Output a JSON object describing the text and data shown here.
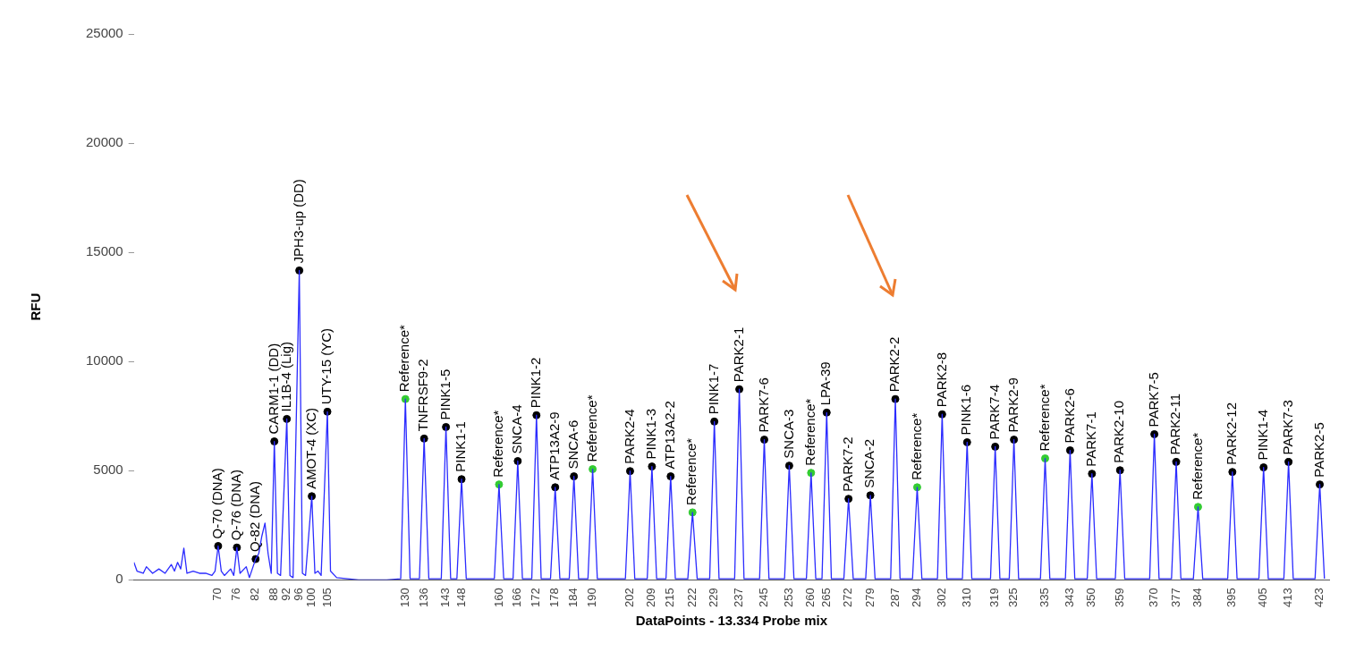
{
  "chart_data": {
    "type": "line",
    "xlabel": "DataPoints - 13.334 Probe mix",
    "ylabel": "RFU",
    "xlim": [
      43,
      426
    ],
    "ylim": [
      0,
      25000
    ],
    "yticks": [
      0,
      5000,
      10000,
      15000,
      20000,
      25000
    ],
    "xticks": [
      70,
      76,
      82,
      88,
      92,
      96,
      100,
      105,
      130,
      136,
      143,
      148,
      160,
      166,
      172,
      178,
      184,
      190,
      202,
      209,
      215,
      222,
      229,
      237,
      245,
      253,
      260,
      265,
      272,
      279,
      287,
      294,
      302,
      310,
      319,
      325,
      335,
      343,
      350,
      359,
      370,
      377,
      384,
      395,
      405,
      413,
      423
    ],
    "grid": false,
    "legend": false,
    "series": [
      {
        "color": "#2b2bff",
        "x": [
          43,
          44,
          46,
          47,
          49,
          51,
          53,
          55,
          56,
          57,
          58,
          59,
          60,
          62,
          64,
          66,
          68,
          69,
          70,
          71,
          72,
          74,
          75,
          76,
          77,
          79,
          80,
          82,
          83,
          84,
          85,
          86,
          87,
          88,
          89,
          90,
          92,
          93,
          94,
          96,
          97,
          98,
          100,
          101,
          102,
          103,
          105,
          106,
          108,
          115,
          124,
          128.5,
          130,
          131.5,
          134.5,
          136,
          137.5,
          141.5,
          143,
          144.5,
          146.5,
          148,
          149.5,
          158.5,
          160,
          161.5,
          164.5,
          166,
          167.5,
          170.5,
          172,
          173.5,
          176.5,
          178,
          179.5,
          182.5,
          184,
          185.5,
          188.5,
          190,
          191.5,
          200.5,
          202,
          203.5,
          207.5,
          209,
          210.5,
          213.5,
          215,
          216.5,
          220.5,
          222,
          223.5,
          227.5,
          229,
          230.5,
          235.5,
          237,
          238.5,
          243.5,
          245,
          246.5,
          251.5,
          253,
          254.5,
          258.5,
          260,
          261.5,
          263.5,
          265,
          266.5,
          270.5,
          272,
          273.5,
          277.5,
          279,
          280.5,
          285.5,
          287,
          288.5,
          292.5,
          294,
          295.5,
          300.5,
          302,
          303.5,
          308.5,
          310,
          311.5,
          317.5,
          319,
          320.5,
          323.5,
          325,
          326.5,
          333.5,
          335,
          336.5,
          341.5,
          343,
          344.5,
          348.5,
          350,
          351.5,
          357.5,
          359,
          360.5,
          368.5,
          370,
          371.5,
          375.5,
          377,
          378.5,
          382.5,
          384,
          385.5,
          393.5,
          395,
          396.5,
          403.5,
          405,
          406.5,
          411.5,
          413,
          414.5,
          421.5,
          423,
          424.5
        ],
        "values": [
          800,
          400,
          300,
          600,
          300,
          500,
          300,
          700,
          400,
          800,
          500,
          1450,
          300,
          400,
          300,
          300,
          200,
          400,
          1550,
          400,
          200,
          500,
          200,
          1480,
          300,
          600,
          100,
          950,
          1200,
          2000,
          2600,
          1200,
          300,
          6340,
          300,
          200,
          7370,
          200,
          100,
          14170,
          300,
          200,
          3830,
          300,
          400,
          200,
          7700,
          400,
          100,
          0,
          0,
          50,
          8280,
          50,
          50,
          6470,
          50,
          50,
          7000,
          50,
          50,
          4610,
          50,
          50,
          4370,
          50,
          50,
          5440,
          50,
          50,
          7540,
          50,
          50,
          4240,
          50,
          50,
          4740,
          50,
          50,
          5070,
          50,
          50,
          4980,
          50,
          50,
          5190,
          50,
          50,
          4740,
          50,
          50,
          3090,
          50,
          50,
          7250,
          50,
          50,
          8730,
          50,
          50,
          6420,
          50,
          50,
          5230,
          50,
          50,
          4900,
          50,
          50,
          7660,
          50,
          50,
          3710,
          50,
          50,
          3870,
          50,
          50,
          8280,
          50,
          50,
          4240,
          50,
          50,
          7580,
          50,
          50,
          6300,
          50,
          50,
          6100,
          50,
          50,
          6420,
          50,
          50,
          5560,
          50,
          50,
          5930,
          50,
          50,
          4860,
          50,
          50,
          5020,
          50,
          50,
          6670,
          50,
          50,
          5400,
          50,
          50,
          3340,
          50,
          50,
          4940,
          50,
          50,
          5150,
          50,
          50,
          5400,
          50,
          50,
          4370,
          50
        ]
      },
      {
        "type": "scatter",
        "marker": "circle",
        "x": [
          70,
          76,
          82,
          88,
          92,
          96,
          100,
          105,
          130,
          136,
          143,
          148,
          160,
          166,
          172,
          178,
          184,
          190,
          202,
          209,
          215,
          222,
          229,
          237,
          245,
          253,
          260,
          265,
          272,
          279,
          287,
          294,
          302,
          310,
          319,
          325,
          335,
          343,
          350,
          359,
          370,
          377,
          384,
          395,
          405,
          413,
          423
        ],
        "values": [
          1550,
          1480,
          950,
          6340,
          7370,
          14170,
          3830,
          7700,
          8280,
          6470,
          7000,
          4610,
          4370,
          5440,
          7540,
          4240,
          4740,
          5070,
          4980,
          5190,
          4740,
          3090,
          7250,
          8730,
          6420,
          5230,
          4900,
          7660,
          3710,
          3870,
          8280,
          4240,
          7580,
          6300,
          6100,
          6420,
          5560,
          5930,
          4860,
          5020,
          6670,
          5400,
          3340,
          4940,
          5150,
          5400,
          4370
        ],
        "colors": [
          "#000000",
          "#000000",
          "#000000",
          "#000000",
          "#000000",
          "#000000",
          "#000000",
          "#000000",
          "#33cc33",
          "#000000",
          "#000000",
          "#000000",
          "#33cc33",
          "#000000",
          "#000000",
          "#000000",
          "#000000",
          "#33cc33",
          "#000000",
          "#000000",
          "#000000",
          "#33cc33",
          "#000000",
          "#000000",
          "#000000",
          "#000000",
          "#33cc33",
          "#000000",
          "#000000",
          "#000000",
          "#000000",
          "#33cc33",
          "#000000",
          "#000000",
          "#000000",
          "#000000",
          "#33cc33",
          "#000000",
          "#000000",
          "#000000",
          "#000000",
          "#000000",
          "#33cc33",
          "#000000",
          "#000000",
          "#000000",
          "#000000"
        ]
      }
    ],
    "annotations": [
      {
        "text": "Q-70 (DNA)",
        "x": 70,
        "y": 1550
      },
      {
        "text": "Q-76 (DNA)",
        "x": 76,
        "y": 1480
      },
      {
        "text": "Q-82 (DNA)",
        "x": 82,
        "y": 950
      },
      {
        "text": "CARM1-1 (DD)",
        "x": 88,
        "y": 6340
      },
      {
        "text": "IL1B-4 (Lig)",
        "x": 92,
        "y": 7370
      },
      {
        "text": "JPH3-up (DD)",
        "x": 96,
        "y": 14170
      },
      {
        "text": "AMOT-4 (XC)",
        "x": 100,
        "y": 3830
      },
      {
        "text": "UTY-15 (YC)",
        "x": 105,
        "y": 7700
      },
      {
        "text": "Reference*",
        "x": 130,
        "y": 8280
      },
      {
        "text": "TNFRSF9-2",
        "x": 136,
        "y": 6470
      },
      {
        "text": "PINK1-5",
        "x": 143,
        "y": 7000
      },
      {
        "text": "PINK1-1",
        "x": 148,
        "y": 4610
      },
      {
        "text": "Reference*",
        "x": 160,
        "y": 4370
      },
      {
        "text": "SNCA-4",
        "x": 166,
        "y": 5440
      },
      {
        "text": "PINK1-2",
        "x": 172,
        "y": 7540
      },
      {
        "text": "ATP13A2-9",
        "x": 178,
        "y": 4240
      },
      {
        "text": "SNCA-6",
        "x": 184,
        "y": 4740
      },
      {
        "text": "Reference*",
        "x": 190,
        "y": 5070
      },
      {
        "text": "PARK2-4",
        "x": 202,
        "y": 4980
      },
      {
        "text": "PINK1-3",
        "x": 209,
        "y": 5190
      },
      {
        "text": "ATP13A2-2",
        "x": 215,
        "y": 4740
      },
      {
        "text": "Reference*",
        "x": 222,
        "y": 3090
      },
      {
        "text": "PINK1-7",
        "x": 229,
        "y": 7250
      },
      {
        "text": "PARK2-1",
        "x": 237,
        "y": 8730
      },
      {
        "text": "PARK7-6",
        "x": 245,
        "y": 6420
      },
      {
        "text": "SNCA-3",
        "x": 253,
        "y": 5230
      },
      {
        "text": "Reference*",
        "x": 260,
        "y": 4900
      },
      {
        "text": "LPA-39",
        "x": 265,
        "y": 7660
      },
      {
        "text": "PARK7-2",
        "x": 272,
        "y": 3710
      },
      {
        "text": "SNCA-2",
        "x": 279,
        "y": 3870
      },
      {
        "text": "PARK2-2",
        "x": 287,
        "y": 8280
      },
      {
        "text": "Reference*",
        "x": 294,
        "y": 4240
      },
      {
        "text": "PARK2-8",
        "x": 302,
        "y": 7580
      },
      {
        "text": "PINK1-6",
        "x": 310,
        "y": 6300
      },
      {
        "text": "PARK7-4",
        "x": 319,
        "y": 6100
      },
      {
        "text": "PARK2-9",
        "x": 325,
        "y": 6420
      },
      {
        "text": "Reference*",
        "x": 335,
        "y": 5560
      },
      {
        "text": "PARK2-6",
        "x": 343,
        "y": 5930
      },
      {
        "text": "PARK7-1",
        "x": 350,
        "y": 4860
      },
      {
        "text": "PARK2-10",
        "x": 359,
        "y": 5020
      },
      {
        "text": "PARK7-5",
        "x": 370,
        "y": 6670
      },
      {
        "text": "PARK2-11",
        "x": 377,
        "y": 5400
      },
      {
        "text": "Reference*",
        "x": 384,
        "y": 3340
      },
      {
        "text": "PARK2-12",
        "x": 395,
        "y": 4940
      },
      {
        "text": "PINK1-4",
        "x": 405,
        "y": 5150
      },
      {
        "text": "PARK7-3",
        "x": 413,
        "y": 5400
      },
      {
        "text": "PARK2-5",
        "x": 423,
        "y": 4370
      }
    ]
  }
}
